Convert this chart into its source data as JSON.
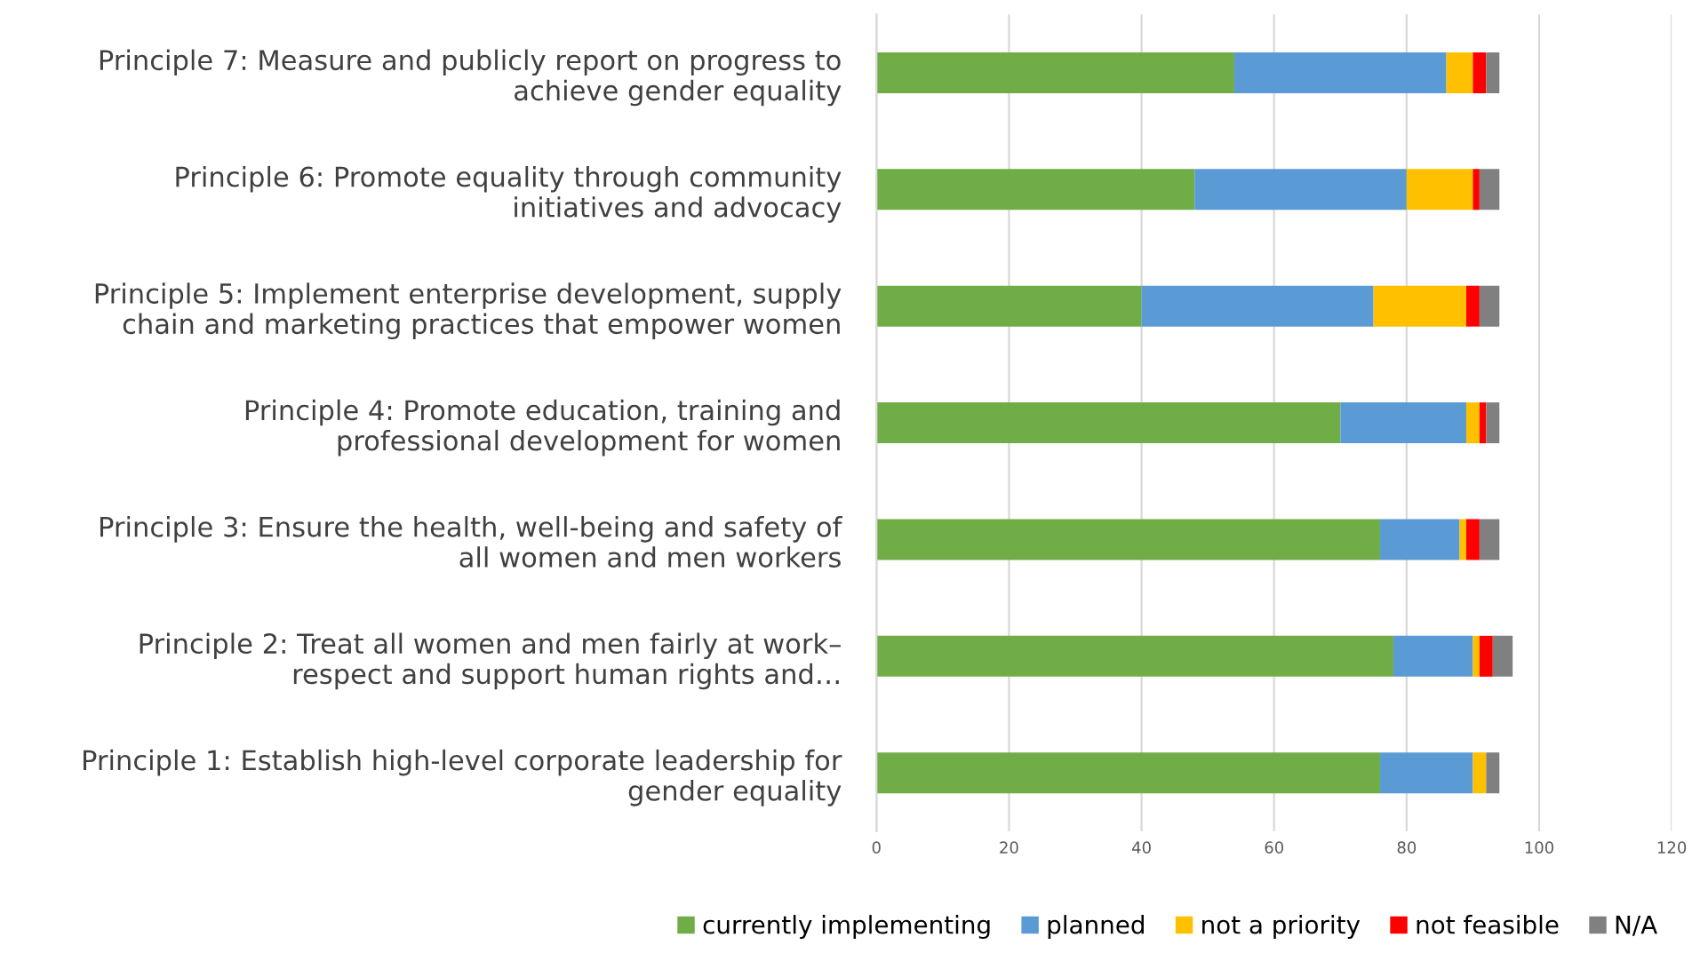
{
  "chart_data": {
    "type": "bar",
    "orientation": "horizontal",
    "stacked": true,
    "categories": [
      "Principle 7: Measure and publicly report on progress to\nachieve gender equality",
      "Principle 6: Promote equality through community\ninitiatives and advocacy",
      "Principle 5: Implement enterprise development, supply\nchain and marketing practices that empower women",
      "Principle 4: Promote education, training and\nprofessional development for women",
      "Principle 3: Ensure the health, well-being and safety of\nall women and men workers",
      "Principle 2: Treat all women and men fairly at work–\nrespect and support human rights and…",
      "Principle 1: Establish high-level corporate leadership for\ngender equality"
    ],
    "series": [
      {
        "name": "currently implementing",
        "color": "#70ad47",
        "values": [
          54,
          48,
          40,
          70,
          76,
          78,
          76
        ]
      },
      {
        "name": "planned",
        "color": "#5b9bd5",
        "values": [
          32,
          32,
          35,
          19,
          12,
          12,
          14
        ]
      },
      {
        "name": "not a priority",
        "color": "#ffc000",
        "values": [
          4,
          10,
          14,
          2,
          1,
          1,
          2
        ]
      },
      {
        "name": "not feasible",
        "color": "#ff0000",
        "values": [
          2,
          1,
          2,
          1,
          2,
          2,
          0
        ]
      },
      {
        "name": "N/A",
        "color": "#808080",
        "values": [
          2,
          3,
          3,
          2,
          3,
          3,
          2
        ]
      }
    ],
    "xlim": [
      0,
      120
    ],
    "xticks": [
      0,
      20,
      40,
      60,
      80,
      100,
      120
    ],
    "grid": "x",
    "legend": "bottom"
  }
}
